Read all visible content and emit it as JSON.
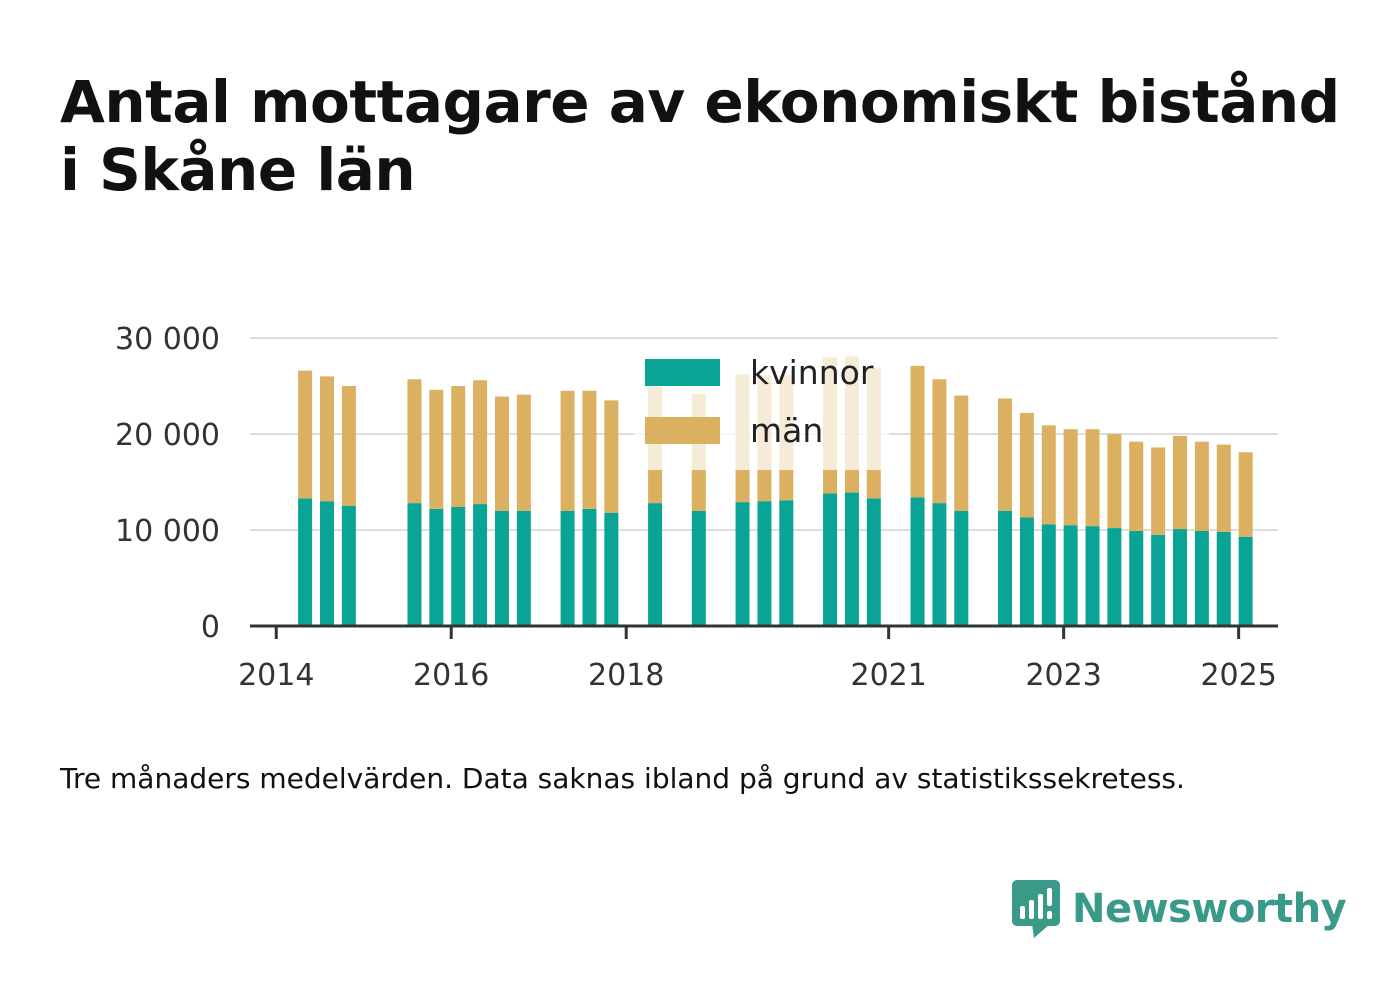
{
  "title": "Antal mottagare av ekonomiskt bistånd i Skåne län",
  "note": "Tre månaders medelvärden. Data saknas ibland på grund av statistikssekretess.",
  "brand": {
    "name": "Newsworthy",
    "logo_icon": "bar-chart-speech-bubble-icon",
    "color": "#3a9a8a"
  },
  "chart_data": {
    "type": "bar",
    "stacked": true,
    "title": "",
    "xlabel": "",
    "ylabel": "",
    "ylim": [
      0,
      30000
    ],
    "xlim": [
      2013.7,
      2025.45
    ],
    "yticks": [
      0,
      10000,
      20000,
      30000
    ],
    "ytick_labels": [
      "0",
      "10 000",
      "20 000",
      "30 000"
    ],
    "xticks": [
      2014,
      2016,
      2018,
      2021,
      2023,
      2025
    ],
    "xtick_labels": [
      "2014",
      "2016",
      "2018",
      "2021",
      "2023",
      "2025"
    ],
    "grid": true,
    "legend": {
      "position": "top-center",
      "entries": [
        "kvinnor",
        "män"
      ]
    },
    "colors": {
      "kvinnor": "#0aa496",
      "män": "#dbb060",
      "män_faded": "#f7efe1"
    },
    "x": [
      2014.33,
      2014.58,
      2014.83,
      2015.58,
      2015.83,
      2016.08,
      2016.33,
      2016.58,
      2016.83,
      2017.33,
      2017.58,
      2017.83,
      2018.33,
      2018.83,
      2019.33,
      2019.58,
      2019.83,
      2020.33,
      2020.58,
      2020.83,
      2021.33,
      2021.58,
      2021.83,
      2022.33,
      2022.58,
      2022.83,
      2023.08,
      2023.33,
      2023.58,
      2023.83,
      2024.08,
      2024.33,
      2024.58,
      2024.83,
      2025.08
    ],
    "series": [
      {
        "name": "kvinnor",
        "values": [
          13300,
          13000,
          12500,
          12800,
          12200,
          12400,
          12700,
          12000,
          12000,
          12000,
          12200,
          11800,
          12800,
          12000,
          12900,
          13000,
          13100,
          13800,
          13900,
          13300,
          13400,
          12800,
          12000,
          12000,
          11300,
          10600,
          10500,
          10400,
          10200,
          9900,
          9500,
          10100,
          9900,
          9800,
          9300
        ]
      },
      {
        "name": "män",
        "values": [
          13300,
          13000,
          12500,
          12900,
          12400,
          12600,
          12900,
          11900,
          12100,
          12500,
          12300,
          11700,
          12100,
          12200,
          13300,
          13100,
          13000,
          14200,
          14200,
          13600,
          13700,
          12900,
          12000,
          11700,
          10900,
          10300,
          10000,
          10100,
          9800,
          9300,
          9100,
          9700,
          9300,
          9100,
          8800
        ]
      }
    ]
  }
}
